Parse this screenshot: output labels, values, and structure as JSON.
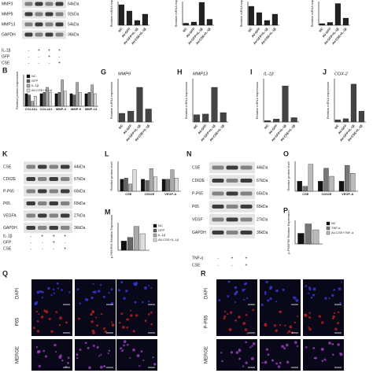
{
  "panels": [
    {
      "letter": "B"
    },
    {
      "letter": "G"
    },
    {
      "letter": "H"
    },
    {
      "letter": "I"
    },
    {
      "letter": "J"
    },
    {
      "letter": "K"
    },
    {
      "letter": "L"
    },
    {
      "letter": "M"
    },
    {
      "letter": "N"
    },
    {
      "letter": "O"
    },
    {
      "letter": "P"
    },
    {
      "letter": "Q"
    },
    {
      "letter": "R"
    }
  ],
  "blots": [
    {
      "proteins": [
        {
          "name": "MMP3",
          "kda": "64kDa"
        },
        {
          "name": "MMP9",
          "kda": "92kDa"
        },
        {
          "name": "MMP13",
          "kda": "54kDa"
        },
        {
          "name": "GAPDH",
          "kda": "36kDa"
        }
      ],
      "conditions": [
        {
          "name": "IL-1β",
          "signs": [
            "-",
            "+",
            "+",
            "+"
          ]
        },
        {
          "name": "GFP",
          "signs": [
            "-",
            "-",
            "+",
            "-"
          ]
        },
        {
          "name": "CSE",
          "signs": [
            "-",
            "-",
            "-",
            "+"
          ]
        }
      ]
    },
    {
      "proteins": [
        {
          "name": "CSE",
          "kda": "44kDa"
        },
        {
          "name": "CD62E",
          "kda": "67kDa"
        },
        {
          "name": "P-P65",
          "kda": "65kDa"
        },
        {
          "name": "P65",
          "kda": "65kDa"
        },
        {
          "name": "VEGFA",
          "kda": "27kDa"
        },
        {
          "name": "GAPDH",
          "kda": "36kDa"
        }
      ],
      "conditions": [
        {
          "name": "IL-1β",
          "signs": [
            "-",
            "+",
            "+",
            "+"
          ]
        },
        {
          "name": "GFP",
          "signs": [
            "-",
            "-",
            "+",
            "-"
          ]
        },
        {
          "name": "CSE",
          "signs": [
            "-",
            "-",
            "-",
            "+"
          ]
        }
      ]
    },
    {
      "proteins": [
        {
          "name": "CSE",
          "kda": "44kDa"
        },
        {
          "name": "CD62E",
          "kda": "67kDa"
        },
        {
          "name": "P-P65",
          "kda": "65kDa"
        },
        {
          "name": "P65",
          "kda": "65kDa"
        },
        {
          "name": "VEGF",
          "kda": "27kDa"
        },
        {
          "name": "GAPDH",
          "kda": "36kDa"
        }
      ],
      "conditions": [
        {
          "name": "TNF-α",
          "signs": [
            "-",
            "+",
            "+"
          ]
        },
        {
          "name": "CSE",
          "signs": [
            "-",
            "-",
            "+"
          ]
        }
      ]
    }
  ],
  "charts": [
    {
      "type": "bar",
      "ylabel": "Relative mRNA exp",
      "categories": [
        "NC",
        "AV-GFP",
        "AV-GFP+IL-1β",
        "AV-CSE+IL-1β"
      ],
      "ylim": [
        0,
        1.5
      ],
      "series": [
        {
          "color": "#222",
          "values": [
            1.3,
            0.9,
            0.3,
            0.7
          ]
        }
      ]
    },
    {
      "type": "bar",
      "ylabel": "Relative mRNA exp",
      "categories": [
        "NC",
        "AV-GFP",
        "AV-GFP+IL-1β",
        "AV-CSE+IL-1β"
      ],
      "ylim": [
        0,
        6
      ],
      "series": [
        {
          "color": "#222",
          "values": [
            0.5,
            0.8,
            5.8,
            1.5
          ]
        }
      ]
    },
    {
      "type": "bar",
      "ylabel": "Relative mRNA exp",
      "categories": [
        "NC",
        "AV-GFP",
        "AV-GFP+IL-1β",
        "AV-CSE+IL-1β"
      ],
      "ylim": [
        0,
        1.5
      ],
      "series": [
        {
          "color": "#222",
          "values": [
            1.2,
            0.8,
            0.3,
            0.7
          ]
        }
      ]
    },
    {
      "type": "bar",
      "ylabel": "Relative mRNA exp",
      "categories": [
        "NC",
        "AV-GFP",
        "AV-GFP+IL-1β",
        "AV-CSE+IL-1β"
      ],
      "ylim": [
        0,
        6
      ],
      "series": [
        {
          "color": "#222",
          "values": [
            0.4,
            0.7,
            5.5,
            1.8
          ]
        }
      ]
    },
    {
      "type": "bar",
      "ylabel": "Relative protein expression",
      "categories": [
        "COL2A1",
        "COL1A1",
        "MMP-3",
        "MMP-9",
        "MMP-13"
      ],
      "ylim": [
        0,
        2.5
      ],
      "series": [
        {
          "name": "NC",
          "color": "#111",
          "values": [
            1.0,
            1.0,
            1.0,
            1.0,
            1.0
          ]
        },
        {
          "name": "GFP",
          "color": "#666",
          "values": [
            0.9,
            1.1,
            1.1,
            0.9,
            1.1
          ]
        },
        {
          "name": "IL-1β",
          "color": "#aaa",
          "values": [
            0.4,
            1.5,
            2.1,
            1.9,
            1.7
          ]
        },
        {
          "name": "AV-CSE+IL-1β",
          "color": "#ddd",
          "values": [
            0.8,
            1.1,
            1.2,
            1.1,
            1.0
          ]
        }
      ]
    },
    {
      "type": "bar",
      "title": "MMP9",
      "ylabel": "Relative mRNA expression",
      "categories": [
        "NC",
        "AV-GFP",
        "AV-GFP+IL-1β",
        "AV-CSE+IL-1β"
      ],
      "ylim": [
        0,
        4
      ],
      "series": [
        {
          "color": "#444",
          "values": [
            0.8,
            1.0,
            3.2,
            1.2
          ]
        }
      ]
    },
    {
      "type": "bar",
      "title": "MMP13",
      "ylabel": "Relative mRNA expression",
      "categories": [
        "NC",
        "AV-GFP",
        "AV-GFP+IL-1β",
        "AV-CSE+IL-1β"
      ],
      "ylim": [
        0,
        6
      ],
      "series": [
        {
          "color": "#444",
          "values": [
            1.0,
            1.1,
            4.8,
            1.3
          ]
        }
      ]
    },
    {
      "type": "bar",
      "title": "IL-1β",
      "ylabel": "Relative mRNA expression",
      "categories": [
        "NC",
        "AV-GFP",
        "AV-GFP+IL-1β",
        "AV-CSE+IL-1β"
      ],
      "ylim": [
        0,
        30
      ],
      "series": [
        {
          "color": "#444",
          "values": [
            1,
            2,
            25,
            3
          ]
        }
      ]
    },
    {
      "type": "bar",
      "title": "COX-2",
      "ylabel": "Relative mRNA expression",
      "categories": [
        "NC",
        "AV-GFP",
        "AV-GFP+IL-1β",
        "AV-CSE+IL-1β"
      ],
      "ylim": [
        0,
        40
      ],
      "series": [
        {
          "color": "#444",
          "values": [
            2,
            3,
            35,
            10
          ]
        }
      ]
    },
    {
      "type": "bar",
      "ylabel": "Relative protein level",
      "categories": [
        "CSE",
        "CD62E",
        "VEGF-A"
      ],
      "ylim": [
        0,
        2.5
      ],
      "series": [
        {
          "color": "#111",
          "values": [
            1.0,
            1.0,
            1.0
          ]
        },
        {
          "color": "#666",
          "values": [
            1.1,
            0.9,
            1.0
          ]
        },
        {
          "color": "#aaa",
          "values": [
            0.6,
            1.9,
            1.8
          ]
        },
        {
          "color": "#ddd",
          "values": [
            1.8,
            1.2,
            1.1
          ]
        }
      ]
    },
    {
      "type": "bar",
      "ylabel": "p-P65/P65 Relative Expression",
      "categories": [
        null
      ],
      "ylim": [
        0,
        1.5
      ],
      "series": [
        {
          "name": "NC",
          "color": "#111",
          "values": [
            0.5
          ]
        },
        {
          "name": "GFP",
          "color": "#666",
          "values": [
            0.7
          ]
        },
        {
          "name": "IL-1β",
          "color": "#aaa",
          "values": [
            1.3
          ]
        },
        {
          "name": "AV-CSE+IL-1β",
          "color": "#ddd",
          "values": [
            0.9
          ]
        }
      ]
    },
    {
      "type": "bar",
      "ylabel": "Relative protein level",
      "categories": [
        "CSE",
        "CD62E",
        "VEGF-A"
      ],
      "ylim": [
        0,
        3
      ],
      "series": [
        {
          "color": "#111",
          "values": [
            1.0,
            1.0,
            1.0
          ]
        },
        {
          "color": "#777",
          "values": [
            0.5,
            2.3,
            2.6
          ]
        },
        {
          "color": "#bbb",
          "values": [
            2.7,
            1.5,
            1.8
          ]
        }
      ]
    },
    {
      "type": "bar",
      "ylabel": "p-P65/P65 Relative Expression",
      "categories": [
        null
      ],
      "ylim": [
        0,
        2
      ],
      "series": [
        {
          "name": "NC",
          "color": "#111",
          "values": [
            0.9
          ]
        },
        {
          "name": "TNF-α",
          "color": "#777",
          "values": [
            1.7
          ]
        },
        {
          "name": "AV-CSE+TNF-α",
          "color": "#bbb",
          "values": [
            1.2
          ]
        }
      ]
    }
  ],
  "micrographs": [
    {
      "rows": [
        "DAPI",
        "P65",
        "MERGE"
      ]
    },
    {
      "rows": [
        "DAPI",
        "P-P65",
        "MERGE"
      ]
    }
  ]
}
